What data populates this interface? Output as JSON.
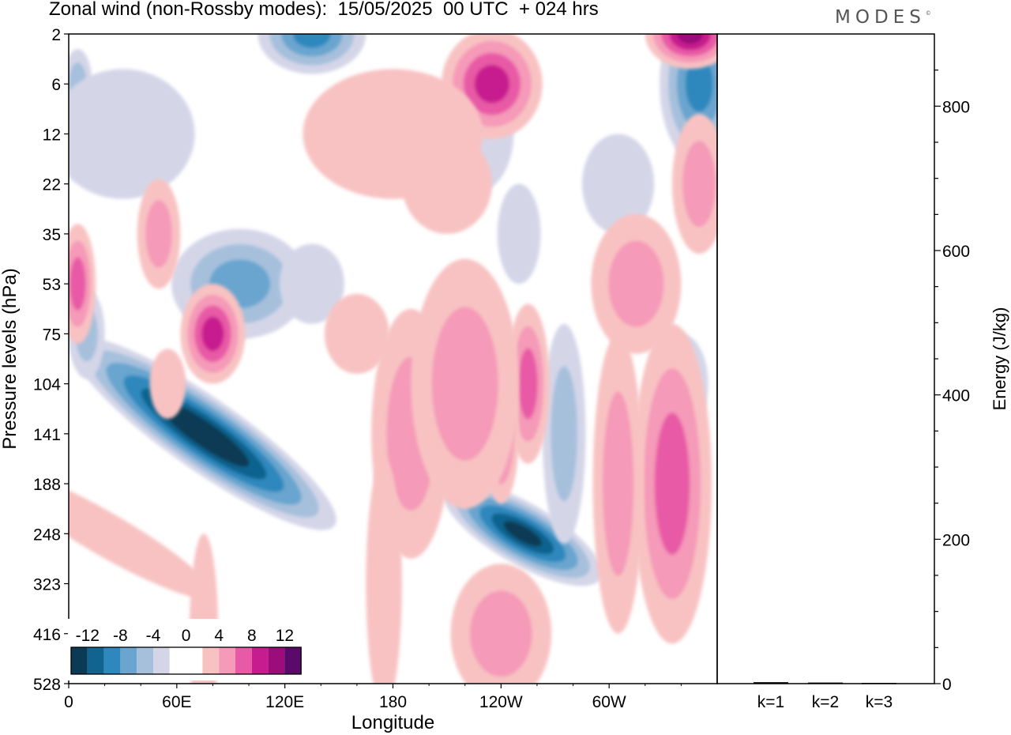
{
  "title": "Zonal wind (non-Rossby modes):  15/05/2025  00 UTC  + 024 hrs",
  "logo": "MODES",
  "chart_data": [
    {
      "type": "heatmap",
      "title": "Zonal wind (non-Rossby modes):  15/05/2025  00 UTC  + 024 hrs",
      "xlabel": "Longitude",
      "ylabel": "Pressure levels (hPa)",
      "x_ticks": [
        "0",
        "60E",
        "120E",
        "180",
        "120W",
        "60W"
      ],
      "x_tick_values": [
        0,
        60,
        120,
        180,
        240,
        300
      ],
      "xlim": [
        0,
        360
      ],
      "y_ticks": [
        "2",
        "6",
        "12",
        "22",
        "35",
        "53",
        "75",
        "104",
        "141",
        "188",
        "248",
        "323",
        "416",
        "528"
      ],
      "colorbar": {
        "labels": [
          "-12",
          "-8",
          "-4",
          "0",
          "4",
          "8",
          "12"
        ],
        "colors": [
          "#0a3a55",
          "#10648f",
          "#2f88bd",
          "#69a5cf",
          "#a6c0dc",
          "#d4d6e8",
          "#ffffff",
          "#ffffff",
          "#f8c2c2",
          "#f59ab8",
          "#e85aa5",
          "#c71c8f",
          "#9a0d7a",
          "#5a0a6a"
        ]
      },
      "features": [
        {
          "lon": 75,
          "level": "141",
          "value": -14,
          "rx": 20,
          "ry": 3.2
        },
        {
          "lon": 252,
          "level": "248",
          "value": -12,
          "rx": 17,
          "ry": 1.8
        },
        {
          "lon": 135,
          "level": "2",
          "value": -8,
          "rx": 30,
          "ry": 0.8
        },
        {
          "lon": 350,
          "level": "6",
          "value": -8,
          "rx": 22,
          "ry": 1.6
        },
        {
          "lon": 5,
          "level": "6",
          "value": -5,
          "rx": 8,
          "ry": 0.7
        },
        {
          "lon": 95,
          "level": "53",
          "value": -6,
          "rx": 38,
          "ry": 1.1
        },
        {
          "lon": 10,
          "level": "75",
          "value": -5,
          "rx": 10,
          "ry": 0.9
        },
        {
          "lon": 275,
          "level": "141",
          "value": -5,
          "rx": 12,
          "ry": 2.2
        },
        {
          "lon": 340,
          "level": "104",
          "value": -4,
          "rx": 15,
          "ry": 1.0
        },
        {
          "lon": 225,
          "level": "12",
          "value": -3,
          "rx": 22,
          "ry": 1.2
        },
        {
          "lon": 305,
          "level": "22",
          "value": -3,
          "rx": 20,
          "ry": 1.0
        },
        {
          "lon": 250,
          "level": "35",
          "value": -3,
          "rx": 12,
          "ry": 1.0
        },
        {
          "lon": 135,
          "level": "53",
          "value": -3,
          "rx": 18,
          "ry": 0.8
        },
        {
          "lon": 30,
          "level": "12",
          "value": -3,
          "rx": 40,
          "ry": 1.3
        },
        {
          "lon": 80,
          "level": "75",
          "value": 8,
          "rx": 18,
          "ry": 1.0
        },
        {
          "lon": 235,
          "level": "6",
          "value": 8,
          "rx": 28,
          "ry": 1.1
        },
        {
          "lon": 345,
          "level": "2",
          "value": 10,
          "rx": 25,
          "ry": 0.7
        },
        {
          "lon": 5,
          "level": "53",
          "value": 6,
          "rx": 10,
          "ry": 1.2
        },
        {
          "lon": 255,
          "level": "104",
          "value": 7,
          "rx": 12,
          "ry": 1.6
        },
        {
          "lon": 240,
          "level": "141",
          "value": 7,
          "rx": 10,
          "ry": 1.4
        },
        {
          "lon": 190,
          "level": "141",
          "value": 5,
          "rx": 22,
          "ry": 2.5
        },
        {
          "lon": 220,
          "level": "104",
          "value": 4,
          "rx": 30,
          "ry": 2.5
        },
        {
          "lon": 335,
          "level": "188",
          "value": 6,
          "rx": 22,
          "ry": 3.2
        },
        {
          "lon": 305,
          "level": "188",
          "value": 5,
          "rx": 14,
          "ry": 3.0
        },
        {
          "lon": 315,
          "level": "53",
          "value": 5,
          "rx": 25,
          "ry": 1.4
        },
        {
          "lon": 160,
          "level": "75",
          "value": 3,
          "rx": 18,
          "ry": 0.8
        },
        {
          "lon": 240,
          "level": "416",
          "value": 4,
          "rx": 28,
          "ry": 1.4
        },
        {
          "lon": 75,
          "level": "416",
          "value": 3,
          "rx": 8,
          "ry": 2.0
        },
        {
          "lon": 20,
          "level": "248",
          "value": 3,
          "rx": 12,
          "ry": 2.5
        },
        {
          "lon": 175,
          "level": "323",
          "value": 3,
          "rx": 10,
          "ry": 2.5
        },
        {
          "lon": 50,
          "level": "35",
          "value": 4,
          "rx": 12,
          "ry": 1.1
        },
        {
          "lon": 180,
          "level": "12",
          "value": 3,
          "rx": 50,
          "ry": 1.3
        },
        {
          "lon": 350,
          "level": "22",
          "value": 4,
          "rx": 15,
          "ry": 1.4
        },
        {
          "lon": 210,
          "level": "22",
          "value": 2,
          "rx": 25,
          "ry": 1.0
        },
        {
          "lon": 55,
          "level": "104",
          "value": 3,
          "rx": 10,
          "ry": 0.7
        }
      ]
    },
    {
      "type": "bar",
      "ylabel": "Energy (J/kg)",
      "categories": [
        "k=1",
        "k=2",
        "k=3"
      ],
      "values": [
        2,
        1.5,
        1
      ],
      "ylim": [
        0,
        900
      ],
      "y_ticks": [
        "0",
        "200",
        "400",
        "600",
        "800"
      ],
      "y_tick_values": [
        0,
        200,
        400,
        600,
        800
      ]
    }
  ]
}
